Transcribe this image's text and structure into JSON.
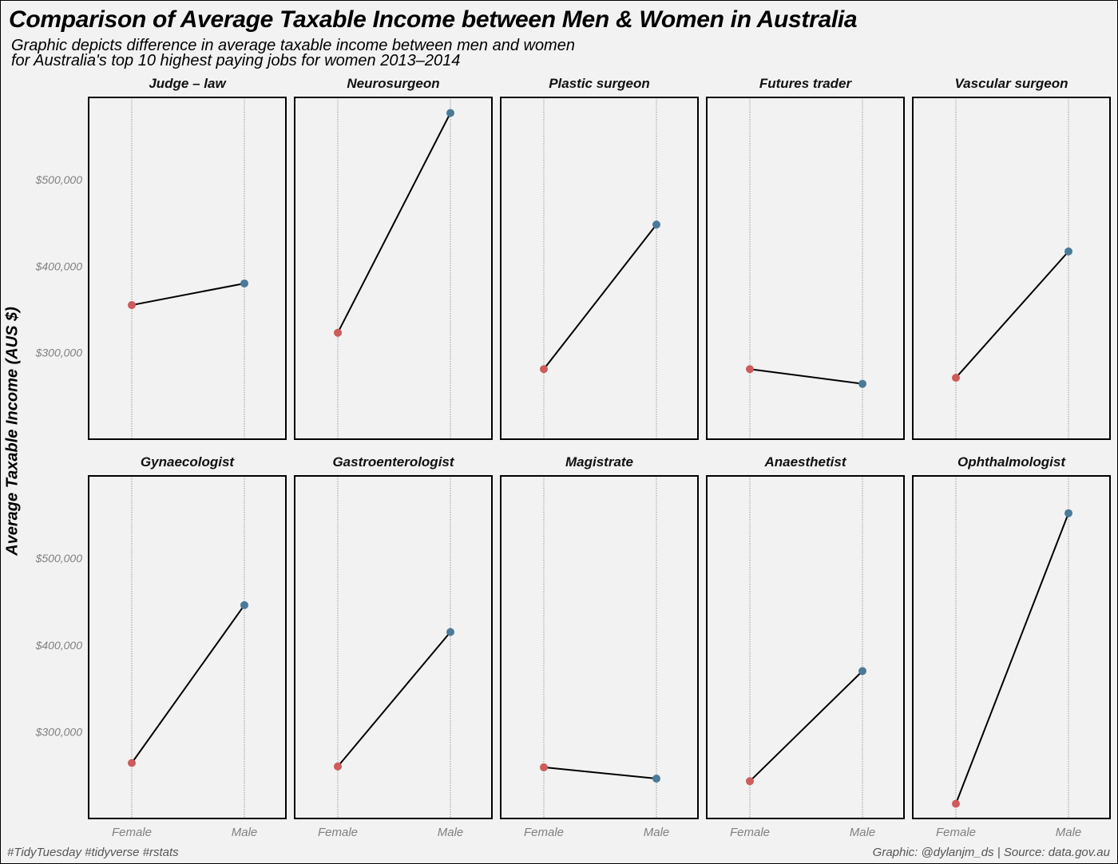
{
  "title": "Comparison of Average Taxable Income between Men & Women in Australia",
  "subtitle_line1": "Graphic depicts difference in average taxable income between men and women",
  "subtitle_line2": "for Australia's top 10 highest paying jobs for women 2013–2014",
  "caption_left": "#TidyTuesday #tidyverse #rstats",
  "caption_right": "Graphic: @dylanjm_ds | Source: data.gov.au",
  "colors": {
    "female": "#cd5c5c",
    "male": "#4a7a9a",
    "line": "#000000",
    "background": "#f2f2f2"
  },
  "chart_data": {
    "type": "line",
    "facet": "small-multiples",
    "ylabel": "Average Taxable Income (AUS $)",
    "x_categories": [
      "Female",
      "Male"
    ],
    "ylim": [
      200000,
      595000
    ],
    "y_ticks": [
      300000,
      400000,
      500000
    ],
    "y_tick_labels": [
      "$300,000",
      "$400,000",
      "$500,000"
    ],
    "grid": "vertical dotted at x categories",
    "panels": [
      {
        "name": "Judge – law",
        "female": 355000,
        "male": 380000
      },
      {
        "name": "Neurosurgeon",
        "female": 323000,
        "male": 577000
      },
      {
        "name": "Plastic surgeon",
        "female": 281000,
        "male": 448000
      },
      {
        "name": "Futures trader",
        "female": 281000,
        "male": 264000
      },
      {
        "name": "Vascular surgeon",
        "female": 271000,
        "male": 417000
      },
      {
        "name": "Gynaecologist",
        "female": 264000,
        "male": 446000
      },
      {
        "name": "Gastroenterologist",
        "female": 260000,
        "male": 415000
      },
      {
        "name": "Magistrate",
        "female": 259000,
        "male": 246000
      },
      {
        "name": "Anaesthetist",
        "female": 243000,
        "male": 370000
      },
      {
        "name": "Ophthalmologist",
        "female": 217000,
        "male": 552000
      }
    ]
  }
}
